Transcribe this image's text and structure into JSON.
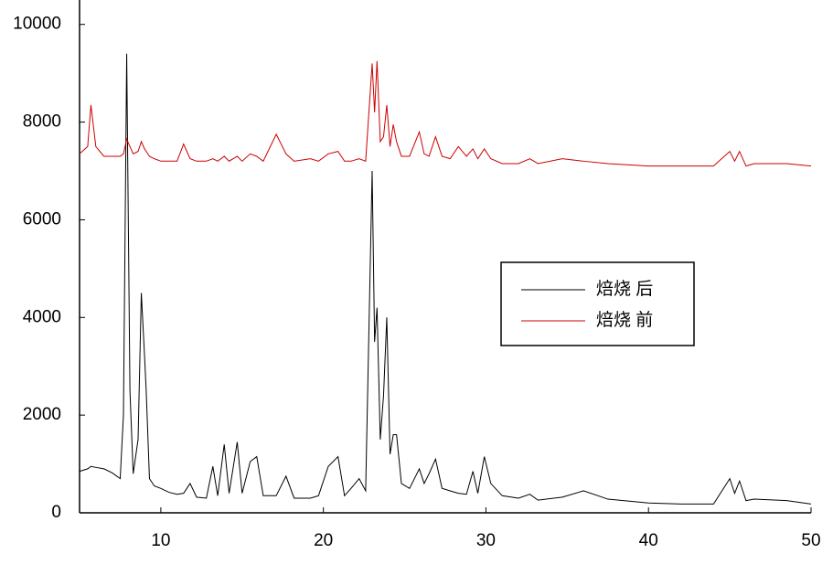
{
  "chart_data": {
    "type": "line",
    "x": [
      5,
      5.5,
      5.7,
      6,
      6.5,
      7,
      7.5,
      7.7,
      7.9,
      8.1,
      8.3,
      8.6,
      8.8,
      9.0,
      9.1,
      9.3,
      9.6,
      10,
      10.5,
      11,
      11.4,
      11.8,
      12.2,
      12.8,
      13.2,
      13.5,
      13.9,
      14.2,
      14.7,
      15.0,
      15.5,
      15.9,
      16.3,
      17.1,
      17.7,
      18.2,
      19.2,
      19.7,
      20.3,
      20.9,
      21.3,
      21.7,
      22.2,
      22.6,
      23.0,
      23.15,
      23.3,
      23.5,
      23.7,
      23.9,
      24.1,
      24.3,
      24.5,
      24.8,
      25.3,
      25.9,
      26.2,
      26.5,
      26.9,
      27.3,
      27.8,
      28.3,
      28.8,
      29.2,
      29.5,
      29.9,
      30.3,
      31,
      32,
      32.7,
      33.2,
      34.7,
      36,
      37.5,
      40,
      42,
      44,
      45,
      45.3,
      45.6,
      46,
      46.5,
      48.5,
      50
    ],
    "series": [
      {
        "name": "焙烧 后",
        "color": "#000000",
        "values": [
          850,
          900,
          950,
          930,
          900,
          820,
          700,
          2000,
          9400,
          2500,
          800,
          1500,
          4500,
          3200,
          2500,
          700,
          550,
          500,
          420,
          380,
          400,
          600,
          320,
          300,
          950,
          350,
          1400,
          400,
          1450,
          400,
          1050,
          1150,
          350,
          350,
          750,
          300,
          300,
          350,
          950,
          1150,
          350,
          500,
          700,
          450,
          7000,
          3500,
          4200,
          1500,
          2400,
          4000,
          1200,
          1600,
          1600,
          600,
          500,
          900,
          600,
          800,
          1100,
          500,
          450,
          400,
          380,
          850,
          400,
          1150,
          600,
          350,
          300,
          380,
          260,
          320,
          450,
          280,
          200,
          180,
          180,
          700,
          400,
          650,
          250,
          280,
          250,
          180
        ]
      },
      {
        "name": "焙烧 前",
        "color": "#cc0000",
        "values": [
          7350,
          7500,
          8350,
          7500,
          7300,
          7300,
          7300,
          7350,
          7650,
          7500,
          7350,
          7400,
          7600,
          7450,
          7400,
          7300,
          7250,
          7200,
          7200,
          7200,
          7550,
          7250,
          7200,
          7200,
          7250,
          7200,
          7300,
          7200,
          7300,
          7200,
          7350,
          7300,
          7200,
          7750,
          7350,
          7200,
          7250,
          7200,
          7350,
          7400,
          7200,
          7200,
          7250,
          7200,
          9200,
          8200,
          9250,
          7600,
          7700,
          8350,
          7500,
          7950,
          7600,
          7300,
          7300,
          7800,
          7350,
          7300,
          7700,
          7300,
          7250,
          7500,
          7300,
          7450,
          7250,
          7450,
          7250,
          7150,
          7150,
          7250,
          7150,
          7250,
          7200,
          7150,
          7100,
          7100,
          7100,
          7400,
          7200,
          7400,
          7100,
          7150,
          7150,
          7100
        ]
      }
    ],
    "xlim": [
      5,
      50
    ],
    "xticks": [
      10,
      20,
      30,
      40,
      50
    ],
    "ylim": [
      0,
      10500
    ],
    "yticks": [
      0,
      2000,
      4000,
      6000,
      8000,
      10000
    ],
    "legend": "right"
  }
}
